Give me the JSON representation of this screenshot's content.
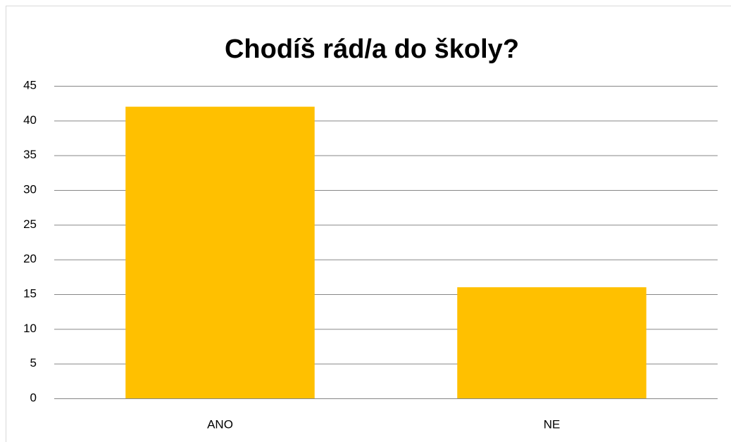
{
  "chart_data": {
    "type": "bar",
    "title": "Chodíš rád/a do školy?",
    "categories": [
      "ANO",
      "NE"
    ],
    "values": [
      42,
      16
    ],
    "color": "#ffc000",
    "ylim": [
      0,
      45
    ],
    "yticks": [
      0,
      5,
      10,
      15,
      20,
      25,
      30,
      35,
      40,
      45
    ],
    "grid": true
  }
}
